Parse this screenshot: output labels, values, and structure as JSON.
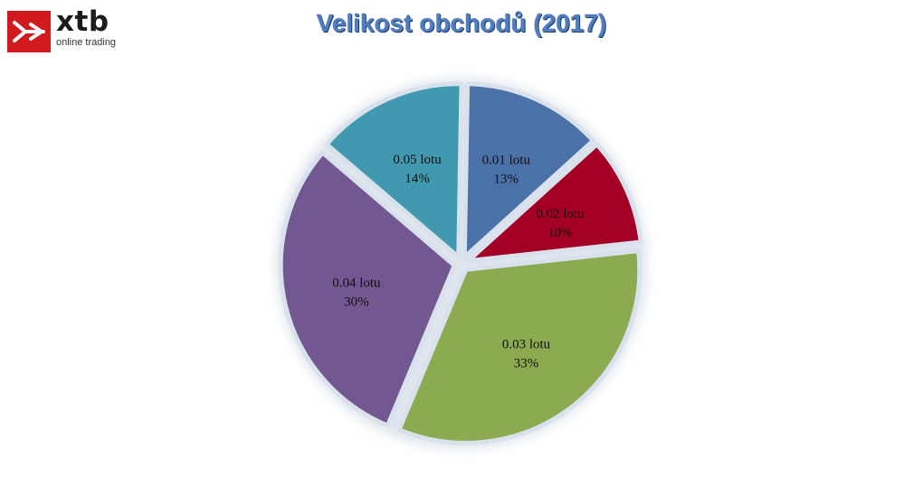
{
  "brand": {
    "name": "xtb",
    "tagline": "online trading",
    "mark_color": "#d21a1e"
  },
  "chart_data": {
    "type": "pie",
    "title": "Velikost obchodů (2017)",
    "slices": [
      {
        "label": "0.01 lotu",
        "value": 13,
        "value_label": "13%",
        "color": "#4a72a8"
      },
      {
        "label": "0.02 lotu",
        "value": 10,
        "value_label": "10%",
        "color": "#a40025"
      },
      {
        "label": "0.03 lotu",
        "value": 33,
        "value_label": "33%",
        "color": "#8cab50"
      },
      {
        "label": "0.04 lotu",
        "value": 30,
        "value_label": "30%",
        "color": "#725791"
      },
      {
        "label": "0.05 lotu",
        "value": 14,
        "value_label": "14%",
        "color": "#4099ae"
      }
    ],
    "legend": "none",
    "exploded": true
  }
}
